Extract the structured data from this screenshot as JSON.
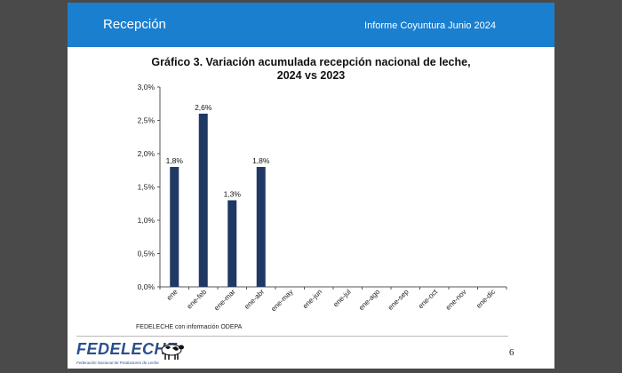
{
  "header": {
    "title": "Recepción",
    "report": "Informe Coyuntura Junio 2024",
    "color": "#1b7fd0"
  },
  "chart_data": {
    "type": "bar",
    "title_lines": [
      "Gráfico 3. Variación acumulada recepción nacional de leche,",
      "2024 vs 2023"
    ],
    "categories": [
      "ene",
      "ene-feb",
      "ene-mar",
      "ene-abr",
      "ene-may",
      "ene-jun",
      "ene-jul",
      "ene-ago",
      "ene-sep",
      "ene-oct",
      "ene-nov",
      "ene-dic"
    ],
    "values": [
      1.8,
      2.6,
      1.3,
      1.8,
      null,
      null,
      null,
      null,
      null,
      null,
      null,
      null
    ],
    "data_labels": [
      "1,8%",
      "2,6%",
      "1,3%",
      "1,8%",
      "",
      "",
      "",
      "",
      "",
      "",
      "",
      ""
    ],
    "y_ticks": [
      0,
      0.5,
      1.0,
      1.5,
      2.0,
      2.5,
      3.0
    ],
    "y_tick_labels": [
      "0,0%",
      "0,5%",
      "1,0%",
      "1,5%",
      "2,0%",
      "2,5%",
      "3,0%"
    ],
    "ylim": [
      0,
      3.0
    ],
    "xlabel": "",
    "ylabel": "",
    "grid": false,
    "legend": false,
    "bar_color": "#1f3864"
  },
  "source_text": "FEDELECHE  con información ODEPA",
  "logo": {
    "text": "FEDELECHE",
    "subtext": "Federación Nacional de Productores de Leche",
    "icon": "cow-icon"
  },
  "page_number": "6"
}
